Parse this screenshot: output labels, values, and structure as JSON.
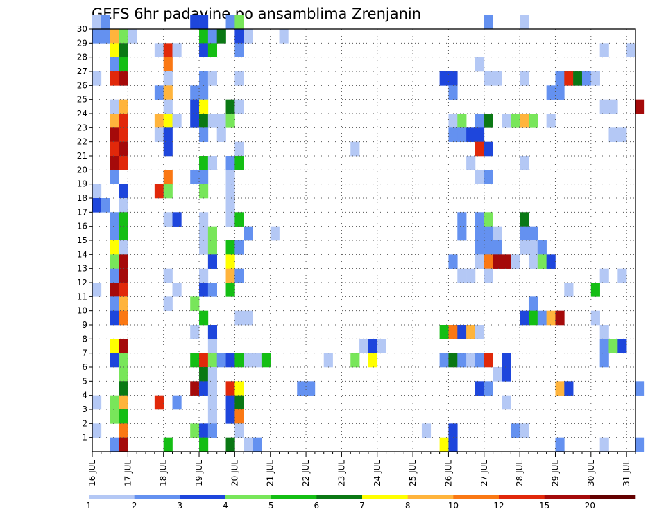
{
  "chart_data": {
    "type": "heatmap",
    "title": "GEFS 6hr padavine po ansamblima Zrenjanin",
    "xlabel": "",
    "ylabel": "",
    "x_ticks": [
      "16 JUL",
      "17 JUL",
      "18 JUL",
      "19 JUL",
      "20 JUL",
      "21 JUL",
      "22 JUL",
      "23 JUL",
      "24 JUL",
      "25 JUL",
      "26 JUL",
      "27 JUL",
      "28 JUL",
      "29 JUL",
      "30 JUL",
      "31 JUL"
    ],
    "x_unit": "days from 16 JUL 00Z (6-hour steps)",
    "x_range": [
      0,
      15.25
    ],
    "y_ticks": [
      1,
      2,
      3,
      4,
      5,
      6,
      7,
      8,
      9,
      10,
      11,
      12,
      13,
      14,
      15,
      16,
      17,
      18,
      19,
      20,
      21,
      22,
      23,
      24,
      25,
      26,
      27,
      28,
      29,
      30
    ],
    "y_range": [
      0,
      30
    ],
    "grid": true,
    "legend": {
      "position": "bottom",
      "labels": [
        "1",
        "2",
        "3",
        "4",
        "5",
        "6",
        "7",
        "8",
        "10",
        "12",
        "15",
        "20"
      ],
      "colors": [
        "#b4c8f5",
        "#6491f0",
        "#1e46dc",
        "#78e65a",
        "#14be14",
        "#0a7814",
        "#ffff00",
        "#ffb43c",
        "#fa7814",
        "#e1280a",
        "#a50a0a",
        "#640000"
      ]
    },
    "levels": [
      "1-2",
      "2-3",
      "3-4",
      "4-5",
      "5-6",
      "6-7",
      "7-8",
      "8-10",
      "10-12",
      "12-15",
      "15-20",
      ">20"
    ],
    "cells": [
      [
        0,
        30,
        1
      ],
      [
        0.25,
        30,
        2
      ],
      [
        2.75,
        30,
        3
      ],
      [
        3,
        30,
        3
      ],
      [
        3.75,
        30,
        2
      ],
      [
        4,
        30,
        4
      ],
      [
        11,
        30,
        2
      ],
      [
        12,
        30,
        1
      ],
      [
        0,
        29,
        2
      ],
      [
        0.25,
        29,
        2
      ],
      [
        0.5,
        29,
        8
      ],
      [
        0.75,
        29,
        4
      ],
      [
        1,
        29,
        1
      ],
      [
        3,
        29,
        5
      ],
      [
        3.25,
        29,
        2
      ],
      [
        3.5,
        29,
        6
      ],
      [
        4,
        29,
        3
      ],
      [
        4.25,
        29,
        1
      ],
      [
        5.25,
        29,
        1
      ],
      [
        0.5,
        28,
        7
      ],
      [
        0.75,
        28,
        6
      ],
      [
        1.75,
        28,
        1
      ],
      [
        2,
        28,
        10
      ],
      [
        2.25,
        28,
        1
      ],
      [
        3,
        28,
        3
      ],
      [
        3.25,
        28,
        5
      ],
      [
        4,
        28,
        2
      ],
      [
        14.25,
        28,
        1
      ],
      [
        15,
        28,
        1
      ],
      [
        0.5,
        27,
        2
      ],
      [
        0.75,
        27,
        5
      ],
      [
        2,
        27,
        9
      ],
      [
        10.75,
        27,
        1
      ],
      [
        0,
        26,
        1
      ],
      [
        0.5,
        26,
        10
      ],
      [
        0.75,
        26,
        11
      ],
      [
        2,
        26,
        1
      ],
      [
        3,
        26,
        2
      ],
      [
        3.25,
        26,
        1
      ],
      [
        4,
        26,
        1
      ],
      [
        9.75,
        26,
        3
      ],
      [
        10,
        26,
        3
      ],
      [
        11,
        26,
        1
      ],
      [
        11.25,
        26,
        1
      ],
      [
        12,
        26,
        1
      ],
      [
        13,
        26,
        2
      ],
      [
        13.25,
        26,
        10
      ],
      [
        13.5,
        26,
        6
      ],
      [
        13.75,
        26,
        2
      ],
      [
        14,
        26,
        1
      ],
      [
        1.75,
        25,
        2
      ],
      [
        2,
        25,
        8
      ],
      [
        2.75,
        25,
        2
      ],
      [
        3,
        25,
        2
      ],
      [
        10,
        25,
        2
      ],
      [
        12.75,
        25,
        2
      ],
      [
        13,
        25,
        2
      ],
      [
        0.5,
        24,
        1
      ],
      [
        0.75,
        24,
        8
      ],
      [
        2,
        24,
        1
      ],
      [
        2.75,
        24,
        3
      ],
      [
        3,
        24,
        7
      ],
      [
        3.75,
        24,
        6
      ],
      [
        4,
        24,
        1
      ],
      [
        14.25,
        24,
        1
      ],
      [
        14.5,
        24,
        1
      ],
      [
        15.25,
        24,
        11
      ],
      [
        0.5,
        23,
        8
      ],
      [
        0.75,
        23,
        10
      ],
      [
        1.75,
        23,
        8
      ],
      [
        2,
        23,
        7
      ],
      [
        2.25,
        23,
        1
      ],
      [
        2.75,
        23,
        3
      ],
      [
        3,
        23,
        6
      ],
      [
        3.25,
        23,
        1
      ],
      [
        3.5,
        23,
        1
      ],
      [
        3.75,
        23,
        4
      ],
      [
        10,
        23,
        1
      ],
      [
        10.25,
        23,
        4
      ],
      [
        10.75,
        23,
        2
      ],
      [
        11,
        23,
        6
      ],
      [
        11.5,
        23,
        1
      ],
      [
        11.75,
        23,
        4
      ],
      [
        12,
        23,
        8
      ],
      [
        12.25,
        23,
        4
      ],
      [
        12.75,
        23,
        1
      ],
      [
        0.5,
        22,
        11
      ],
      [
        0.75,
        22,
        10
      ],
      [
        1.75,
        22,
        1
      ],
      [
        2,
        22,
        3
      ],
      [
        3,
        22,
        2
      ],
      [
        3.5,
        22,
        1
      ],
      [
        10,
        22,
        2
      ],
      [
        10.25,
        22,
        2
      ],
      [
        10.5,
        22,
        3
      ],
      [
        10.75,
        22,
        3
      ],
      [
        14.5,
        22,
        1
      ],
      [
        14.75,
        22,
        1
      ],
      [
        0.5,
        21,
        10
      ],
      [
        0.75,
        21,
        11
      ],
      [
        2,
        21,
        3
      ],
      [
        4,
        21,
        1
      ],
      [
        7.25,
        21,
        1
      ],
      [
        10.75,
        21,
        10
      ],
      [
        11,
        21,
        3
      ],
      [
        0.5,
        20,
        11
      ],
      [
        0.75,
        20,
        10
      ],
      [
        3,
        20,
        5
      ],
      [
        3.25,
        20,
        1
      ],
      [
        3.75,
        20,
        2
      ],
      [
        4,
        20,
        5
      ],
      [
        10.5,
        20,
        1
      ],
      [
        12,
        20,
        1
      ],
      [
        0.5,
        19,
        2
      ],
      [
        2,
        19,
        9
      ],
      [
        2.75,
        19,
        2
      ],
      [
        3,
        19,
        2
      ],
      [
        3.75,
        19,
        1
      ],
      [
        10.75,
        19,
        1
      ],
      [
        11,
        19,
        2
      ],
      [
        0,
        18,
        1
      ],
      [
        0.75,
        18,
        3
      ],
      [
        1.75,
        18,
        10
      ],
      [
        2,
        18,
        4
      ],
      [
        3,
        18,
        4
      ],
      [
        3.75,
        18,
        1
      ],
      [
        0,
        17,
        3
      ],
      [
        0.25,
        17,
        2
      ],
      [
        0.75,
        17,
        1
      ],
      [
        3.75,
        17,
        1
      ],
      [
        0.5,
        16,
        2
      ],
      [
        0.75,
        16,
        5
      ],
      [
        2,
        16,
        1
      ],
      [
        2.25,
        16,
        3
      ],
      [
        3,
        16,
        1
      ],
      [
        3.75,
        16,
        1
      ],
      [
        4,
        16,
        5
      ],
      [
        10.25,
        16,
        2
      ],
      [
        10.75,
        16,
        2
      ],
      [
        11,
        16,
        4
      ],
      [
        12,
        16,
        6
      ],
      [
        0.5,
        15,
        2
      ],
      [
        0.75,
        15,
        5
      ],
      [
        3,
        15,
        1
      ],
      [
        3.25,
        15,
        4
      ],
      [
        4.25,
        15,
        2
      ],
      [
        5,
        15,
        1
      ],
      [
        10.25,
        15,
        2
      ],
      [
        10.75,
        15,
        2
      ],
      [
        11,
        15,
        2
      ],
      [
        11.25,
        15,
        1
      ],
      [
        12,
        15,
        2
      ],
      [
        12.25,
        15,
        2
      ],
      [
        0.5,
        14,
        7
      ],
      [
        0.75,
        14,
        1
      ],
      [
        3,
        14,
        1
      ],
      [
        3.25,
        14,
        4
      ],
      [
        3.75,
        14,
        5
      ],
      [
        4,
        14,
        2
      ],
      [
        10.75,
        14,
        2
      ],
      [
        11,
        14,
        2
      ],
      [
        11.25,
        14,
        2
      ],
      [
        12,
        14,
        1
      ],
      [
        12.25,
        14,
        1
      ],
      [
        12.5,
        14,
        2
      ],
      [
        0.5,
        13,
        4
      ],
      [
        0.75,
        13,
        11
      ],
      [
        3.25,
        13,
        3
      ],
      [
        3.75,
        13,
        7
      ],
      [
        10,
        13,
        2
      ],
      [
        10.75,
        13,
        1
      ],
      [
        11,
        13,
        9
      ],
      [
        11.25,
        13,
        11
      ],
      [
        11.5,
        13,
        11
      ],
      [
        11.75,
        13,
        1
      ],
      [
        12.25,
        13,
        1
      ],
      [
        12.5,
        13,
        4
      ],
      [
        12.75,
        13,
        3
      ],
      [
        0.5,
        12,
        2
      ],
      [
        0.75,
        12,
        11
      ],
      [
        2,
        12,
        1
      ],
      [
        3,
        12,
        1
      ],
      [
        3.75,
        12,
        8
      ],
      [
        4,
        12,
        2
      ],
      [
        10.25,
        12,
        1
      ],
      [
        10.5,
        12,
        1
      ],
      [
        11,
        12,
        1
      ],
      [
        14.25,
        12,
        1
      ],
      [
        14.75,
        12,
        1
      ],
      [
        0,
        11,
        1
      ],
      [
        0.5,
        11,
        11
      ],
      [
        0.75,
        11,
        10
      ],
      [
        2.25,
        11,
        1
      ],
      [
        3,
        11,
        3
      ],
      [
        3.25,
        11,
        2
      ],
      [
        3.75,
        11,
        5
      ],
      [
        13.25,
        11,
        1
      ],
      [
        14,
        11,
        5
      ],
      [
        0.5,
        10,
        2
      ],
      [
        0.75,
        10,
        8
      ],
      [
        2,
        10,
        1
      ],
      [
        2.75,
        10,
        4
      ],
      [
        12.25,
        10,
        2
      ],
      [
        0.5,
        9,
        3
      ],
      [
        0.75,
        9,
        9
      ],
      [
        3,
        9,
        5
      ],
      [
        4,
        9,
        1
      ],
      [
        4.25,
        9,
        1
      ],
      [
        12,
        9,
        3
      ],
      [
        12.25,
        9,
        5
      ],
      [
        12.5,
        9,
        2
      ],
      [
        12.75,
        9,
        8
      ],
      [
        13,
        9,
        11
      ],
      [
        14,
        9,
        1
      ],
      [
        2.75,
        8,
        1
      ],
      [
        3.25,
        8,
        3
      ],
      [
        9.75,
        8,
        5
      ],
      [
        10,
        8,
        9
      ],
      [
        10.25,
        8,
        3
      ],
      [
        10.5,
        8,
        8
      ],
      [
        10.75,
        8,
        1
      ],
      [
        14.25,
        8,
        1
      ],
      [
        0.5,
        7,
        7
      ],
      [
        0.75,
        7,
        11
      ],
      [
        3.25,
        7,
        1
      ],
      [
        7.5,
        7,
        1
      ],
      [
        7.75,
        7,
        3
      ],
      [
        8,
        7,
        1
      ],
      [
        14.25,
        7,
        2
      ],
      [
        14.5,
        7,
        4
      ],
      [
        14.75,
        7,
        3
      ],
      [
        0.5,
        6,
        3
      ],
      [
        0.75,
        6,
        4
      ],
      [
        2.75,
        6,
        5
      ],
      [
        3,
        6,
        10
      ],
      [
        3.25,
        6,
        4
      ],
      [
        3.5,
        6,
        2
      ],
      [
        3.75,
        6,
        3
      ],
      [
        4,
        6,
        5
      ],
      [
        4.25,
        6,
        1
      ],
      [
        4.5,
        6,
        1
      ],
      [
        4.75,
        6,
        5
      ],
      [
        6.5,
        6,
        1
      ],
      [
        7.25,
        6,
        4
      ],
      [
        7.75,
        6,
        7
      ],
      [
        9.75,
        6,
        2
      ],
      [
        10,
        6,
        6
      ],
      [
        10.25,
        6,
        2
      ],
      [
        10.5,
        6,
        1
      ],
      [
        10.75,
        6,
        2
      ],
      [
        11,
        6,
        10
      ],
      [
        11.5,
        6,
        3
      ],
      [
        14.25,
        6,
        2
      ],
      [
        0.75,
        5,
        4
      ],
      [
        3,
        5,
        6
      ],
      [
        3.25,
        5,
        1
      ],
      [
        11.25,
        5,
        1
      ],
      [
        11.5,
        5,
        3
      ],
      [
        0.75,
        4,
        6
      ],
      [
        2.75,
        4,
        11
      ],
      [
        3,
        4,
        3
      ],
      [
        3.25,
        4,
        1
      ],
      [
        3.75,
        4,
        10
      ],
      [
        4,
        4,
        7
      ],
      [
        5.75,
        4,
        2
      ],
      [
        6,
        4,
        2
      ],
      [
        10.75,
        4,
        3
      ],
      [
        11,
        4,
        2
      ],
      [
        13,
        4,
        8
      ],
      [
        13.25,
        4,
        3
      ],
      [
        15.25,
        4,
        2
      ],
      [
        0,
        3,
        1
      ],
      [
        0.5,
        3,
        4
      ],
      [
        0.75,
        3,
        8
      ],
      [
        1.75,
        3,
        10
      ],
      [
        2.25,
        3,
        2
      ],
      [
        3.25,
        3,
        1
      ],
      [
        3.75,
        3,
        3
      ],
      [
        4,
        3,
        6
      ],
      [
        11.5,
        3,
        1
      ],
      [
        0.5,
        2,
        4
      ],
      [
        0.75,
        2,
        5
      ],
      [
        3.25,
        2,
        1
      ],
      [
        3.75,
        2,
        3
      ],
      [
        4,
        2,
        9
      ],
      [
        0,
        1,
        1
      ],
      [
        0.75,
        1,
        9
      ],
      [
        2.75,
        1,
        4
      ],
      [
        3,
        1,
        3
      ],
      [
        3.25,
        1,
        2
      ],
      [
        4,
        1,
        1
      ],
      [
        9.25,
        1,
        1
      ],
      [
        10,
        1,
        3
      ],
      [
        11.75,
        1,
        2
      ],
      [
        12,
        1,
        1
      ],
      [
        0.5,
        0,
        2
      ],
      [
        0.75,
        0,
        11
      ],
      [
        2,
        0,
        5
      ],
      [
        3,
        0,
        5
      ],
      [
        3.75,
        0,
        6
      ],
      [
        4.25,
        0,
        1
      ],
      [
        4.5,
        0,
        2
      ],
      [
        9.75,
        0,
        7
      ],
      [
        10,
        0,
        3
      ],
      [
        13,
        0,
        2
      ],
      [
        14.25,
        0,
        1
      ],
      [
        15.25,
        0,
        2
      ]
    ]
  }
}
